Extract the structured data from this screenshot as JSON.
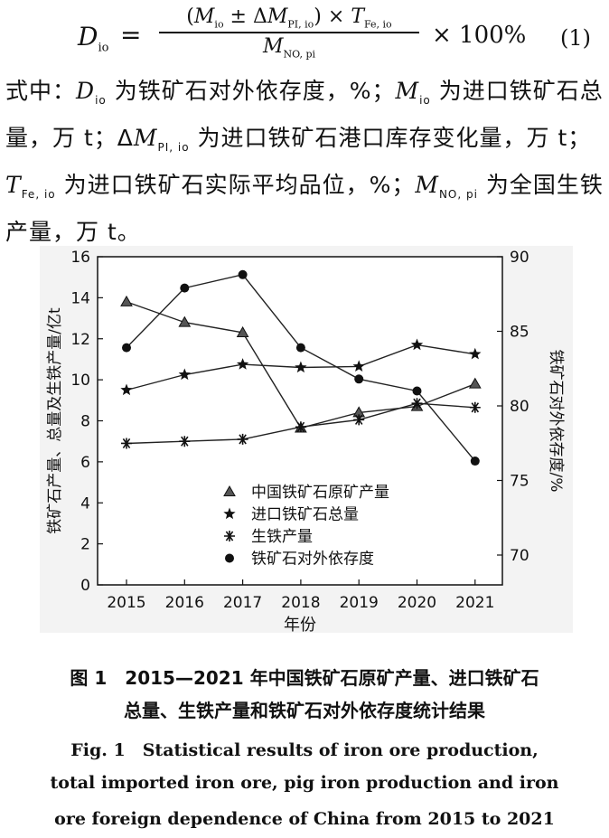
{
  "equation": {
    "lhs_var": "D",
    "lhs_sub": "io",
    "equals": "=",
    "num_open": "(",
    "num_m": "M",
    "num_m_sub": "io",
    "num_pm": " ± Δ",
    "num_m2": "M",
    "num_m2_sub": "PI, io",
    "num_close": ") × ",
    "num_t": "T",
    "num_t_sub": "Fe, io",
    "den_m": "M",
    "den_sub": "NO, pi",
    "times": "× 100%",
    "number": "(1)"
  },
  "paragraph": {
    "p1": "式中：",
    "v1": "D",
    "v1_sub": "io",
    "d1": " 为铁矿石对外依存度，%；",
    "v2": "M",
    "v2_sub": "io",
    "d2": " 为进口铁矿石总量，万 t；Δ",
    "v3": "M",
    "v3_sub": "PI, io",
    "d3": " 为进口铁矿石港口库存变化量，万 t；",
    "v4": "T",
    "v4_sub": "Fe, io",
    "d4": " 为进口铁矿石实际平均品位，%；",
    "v5": "M",
    "v5_sub": "NO, pi",
    "d5": " 为全国生铁产量，万 t。"
  },
  "chart_data": {
    "type": "line",
    "x": [
      "2015",
      "2016",
      "2017",
      "2018",
      "2019",
      "2020",
      "2021"
    ],
    "xlabel": "年份",
    "ylabel_left": "铁矿石产量、总量及生铁产量/亿t",
    "ylabel_right": "铁矿石对外依存度/%",
    "ylim_left": [
      0,
      16
    ],
    "yticks_left": [
      "0",
      "2",
      "4",
      "6",
      "8",
      "10",
      "12",
      "14",
      "16"
    ],
    "ylim_right": [
      68,
      90
    ],
    "yticks_right": [
      "70",
      "75",
      "80",
      "85",
      "90"
    ],
    "legend_position": "lower-left",
    "series": [
      {
        "name": "中国铁矿石原矿产量",
        "marker": "triangle",
        "axis": "left",
        "values": [
          13.8,
          12.8,
          12.3,
          7.65,
          8.4,
          8.7,
          9.8
        ]
      },
      {
        "name": "进口铁矿石总量",
        "marker": "star",
        "axis": "left",
        "values": [
          9.5,
          10.25,
          10.75,
          10.6,
          10.65,
          11.7,
          11.25
        ]
      },
      {
        "name": "生铁产量",
        "marker": "asterisk",
        "axis": "left",
        "values": [
          6.9,
          7.0,
          7.1,
          7.7,
          8.05,
          8.85,
          8.65
        ]
      },
      {
        "name": "铁矿石对外依存度",
        "marker": "circle",
        "axis": "right",
        "values": [
          83.9,
          87.9,
          88.8,
          83.9,
          81.8,
          81.0,
          76.3
        ]
      }
    ]
  },
  "caption": {
    "cn_line1": "图 1　2015—2021 年中国铁矿石原矿产量、进口铁矿石",
    "cn_line2": "总量、生铁产量和铁矿石对外依存度统计结果",
    "en_line1": "Fig. 1　Statistical results of iron ore production,",
    "en_line2": "total imported iron ore, pig iron production and iron",
    "en_line3": "ore foreign dependence of China from 2015 to 2021"
  }
}
